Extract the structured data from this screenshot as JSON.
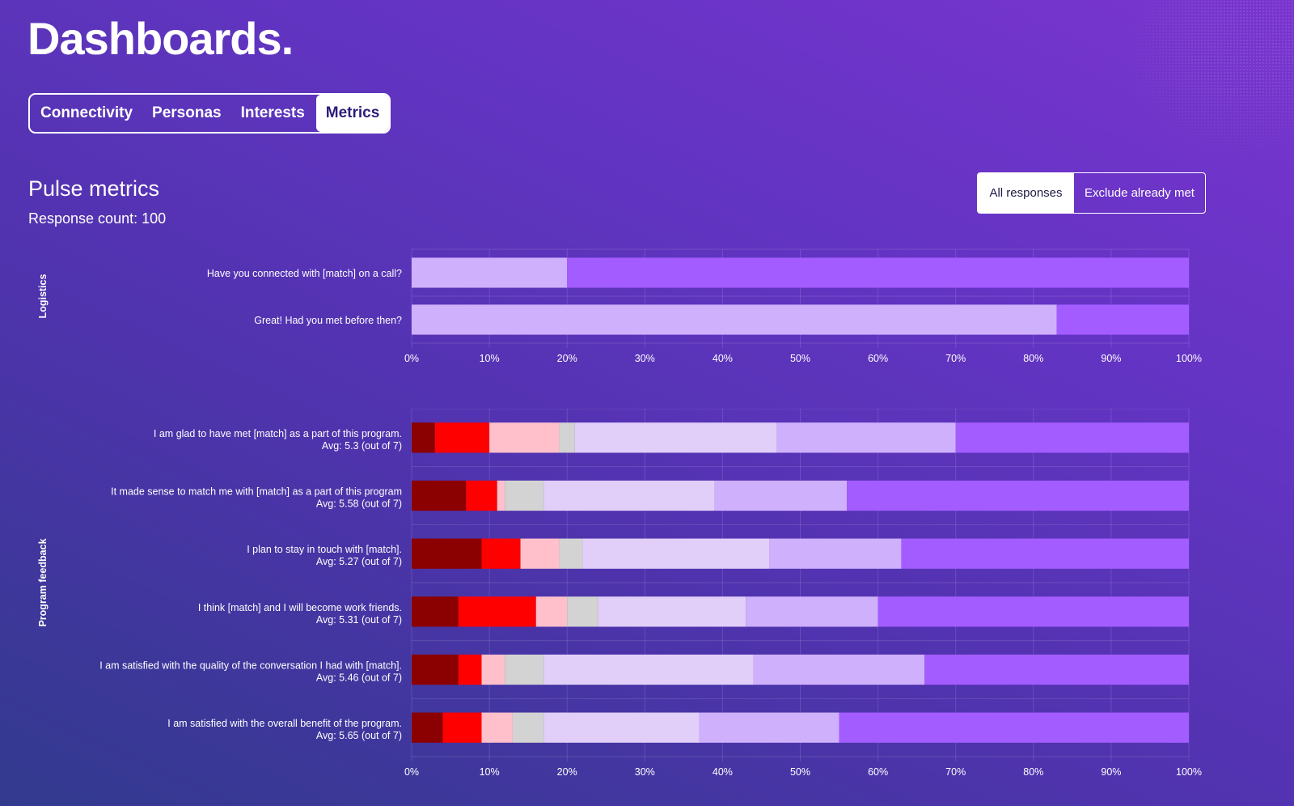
{
  "header": {
    "title": "Dashboards."
  },
  "tabs": [
    {
      "label": "Connectivity",
      "active": false
    },
    {
      "label": "Personas",
      "active": false
    },
    {
      "label": "Interests",
      "active": false
    },
    {
      "label": "Metrics",
      "active": true
    }
  ],
  "section": {
    "title": "Pulse metrics",
    "response_count": "Response count: 100"
  },
  "filter_toggle": {
    "options": [
      "All responses",
      "Exclude already met"
    ],
    "selected": "All responses"
  },
  "colors": {
    "strongly_negative": "#8b0000",
    "negative": "#ff0000",
    "slightly_negative": "#ffc0cb",
    "neutral": "#d3d3d3",
    "slightly_positive": "#e1cffa",
    "positive": "#cfb0fd",
    "strongly_positive": "#a35cff",
    "grid": "rgba(255,255,255,0.13)",
    "tick": "#ffffff"
  },
  "chart_data": [
    {
      "type": "bar",
      "orientation": "horizontal",
      "stacked": true,
      "group_label": "Logistics",
      "x_range": [
        0,
        100
      ],
      "x_ticks": [
        "0%",
        "10%",
        "20%",
        "30%",
        "40%",
        "50%",
        "60%",
        "70%",
        "80%",
        "90%",
        "100%"
      ],
      "categories": [
        {
          "label": "Have you connected with [match] on a call?"
        },
        {
          "label": "Great! Had you met before then?"
        }
      ],
      "series": [
        {
          "name": "segment-1",
          "color": "#cfb0fd",
          "values": [
            20,
            83
          ]
        },
        {
          "name": "segment-2",
          "color": "#a35cff",
          "values": [
            80,
            17
          ]
        }
      ]
    },
    {
      "type": "bar",
      "orientation": "horizontal",
      "stacked": true,
      "group_label": "Program feedback",
      "x_range": [
        0,
        100
      ],
      "x_ticks": [
        "0%",
        "10%",
        "20%",
        "30%",
        "40%",
        "50%",
        "60%",
        "70%",
        "80%",
        "90%",
        "100%"
      ],
      "categories": [
        {
          "label": "I am glad to have met [match] as a part of this program.",
          "avg": "Avg: 5.3 (out of 7)"
        },
        {
          "label": "It made sense to match me with [match] as a part of this program",
          "avg": "Avg: 5.58 (out of 7)"
        },
        {
          "label": "I plan to stay in touch with [match].",
          "avg": "Avg: 5.27 (out of 7)"
        },
        {
          "label": "I think [match] and I will become work friends.",
          "avg": "Avg: 5.31 (out of 7)"
        },
        {
          "label": "I am satisfied with the quality of the conversation I had with [match].",
          "avg": "Avg: 5.46 (out of 7)"
        },
        {
          "label": "I am satisfied with the overall benefit of the program.",
          "avg": "Avg: 5.65 (out of 7)"
        }
      ],
      "series": [
        {
          "name": "1",
          "color": "#8b0000",
          "values": [
            3,
            7,
            9,
            6,
            6,
            4
          ]
        },
        {
          "name": "2",
          "color": "#ff0000",
          "values": [
            7,
            4,
            5,
            10,
            3,
            5
          ]
        },
        {
          "name": "3",
          "color": "#ffc0cb",
          "values": [
            9,
            1,
            5,
            4,
            3,
            4
          ]
        },
        {
          "name": "4",
          "color": "#d3d3d3",
          "values": [
            2,
            5,
            3,
            4,
            5,
            4
          ]
        },
        {
          "name": "5",
          "color": "#e1cffa",
          "values": [
            26,
            22,
            24,
            19,
            27,
            20
          ]
        },
        {
          "name": "6",
          "color": "#cfb0fd",
          "values": [
            23,
            17,
            17,
            17,
            22,
            18
          ]
        },
        {
          "name": "7",
          "color": "#a35cff",
          "values": [
            30,
            44,
            37,
            40,
            34,
            45
          ]
        }
      ]
    }
  ]
}
